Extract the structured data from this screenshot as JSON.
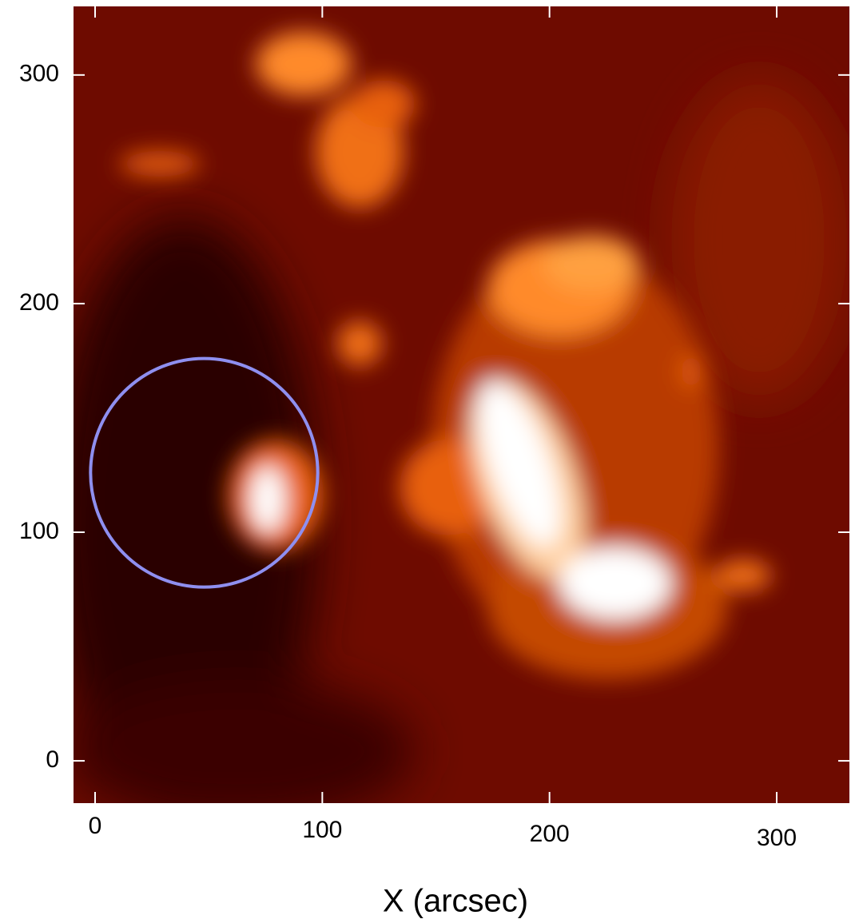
{
  "chart_data": {
    "type": "image",
    "xlabel": "X (arcsec)",
    "xlim": [
      -9.5,
      332
    ],
    "ylim": [
      -18.5,
      330
    ],
    "xticks": [
      0,
      100,
      200,
      300
    ],
    "yticks": [
      0,
      100,
      200,
      300
    ],
    "circle": {
      "x": 48,
      "y": 126,
      "r": 50,
      "color": "#8f8ff0"
    }
  }
}
